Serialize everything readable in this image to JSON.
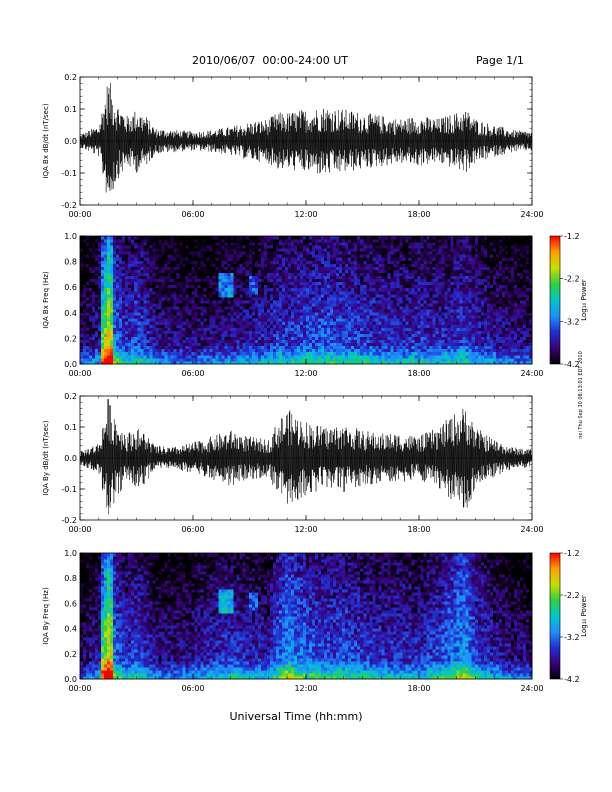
{
  "header": {
    "title": "2010/06/07  00:00-24:00 UT",
    "page": "Page 1/1"
  },
  "footer": {
    "xlabel": "Universal Time (hh:mm)",
    "side_note": "nei Thu Sep 30 08:13:01 EDT 2010"
  },
  "x_ticks": [
    "00:00",
    "06:00",
    "12:00",
    "18:00",
    "24:00"
  ],
  "colorbar": {
    "label": "Log₁₀ Power",
    "ticks": [
      "-1.2",
      "-2.2",
      "-3.2",
      "-4.2"
    ],
    "range": [
      -4.2,
      -1.2
    ],
    "colors": [
      "#000000",
      "#3a007a",
      "#2030d0",
      "#1e90ff",
      "#00c8c8",
      "#30d040",
      "#c8e000",
      "#ffa000",
      "#ff0000"
    ]
  },
  "chart_data": [
    {
      "type": "line",
      "title": "",
      "xlabel": "",
      "ylabel": "IQA Bx dB/dt (nT/sec)",
      "xlim": [
        0,
        24
      ],
      "ylim": [
        -0.2,
        0.2
      ],
      "y_ticks": [
        "0.2",
        "0.1",
        "0.0",
        "-0.1",
        "-0.2"
      ],
      "series": [
        {
          "x": [
            0,
            1,
            1.5,
            2,
            2.5,
            3,
            3.5,
            4,
            5,
            6,
            7,
            8,
            9,
            10,
            10.5,
            11,
            12,
            13,
            14,
            15,
            16,
            17,
            18,
            19,
            20,
            20.5,
            21,
            22,
            23,
            24
          ],
          "y": [
            0.02,
            0.05,
            0.2,
            0.12,
            0.08,
            0.1,
            0.08,
            0.04,
            0.035,
            0.03,
            0.035,
            0.045,
            0.06,
            0.07,
            0.09,
            0.09,
            0.1,
            0.11,
            0.1,
            0.09,
            0.08,
            0.07,
            0.08,
            0.07,
            0.09,
            0.1,
            0.07,
            0.05,
            0.035,
            0.03
          ]
        }
      ]
    },
    {
      "type": "heatmap",
      "title": "",
      "xlabel": "",
      "ylabel": "IQA Bx Freq (Hz)",
      "xlim": [
        0,
        24
      ],
      "ylim": [
        0.0,
        1.0
      ],
      "y_ticks": [
        "1.0",
        "0.8",
        "0.6",
        "0.4",
        "0.2",
        "0.0"
      ],
      "x": [
        0,
        1,
        1.5,
        2,
        2.5,
        3,
        3.5,
        4,
        5,
        6,
        7,
        8,
        9,
        10,
        10.5,
        11,
        12,
        13,
        14,
        15,
        16,
        17,
        18,
        19,
        20,
        20.5,
        21,
        22,
        23,
        24
      ],
      "y": [
        0.0,
        0.2,
        0.4,
        0.6,
        0.8,
        1.0
      ],
      "z_levels": [
        -4.2,
        -3.2,
        -2.2,
        -1.2
      ],
      "z_range": [
        -4.2,
        -1.2
      ]
    },
    {
      "type": "line",
      "title": "",
      "xlabel": "",
      "ylabel": "IQA By dB/dt (nT/sec)",
      "xlim": [
        0,
        24
      ],
      "ylim": [
        -0.2,
        0.2
      ],
      "y_ticks": [
        "0.2",
        "0.1",
        "0.0",
        "-0.1",
        "-0.2"
      ],
      "series": [
        {
          "x": [
            0,
            1,
            1.5,
            2,
            2.5,
            3,
            3.5,
            4,
            5,
            6,
            7,
            8,
            9,
            10,
            10.5,
            11,
            12,
            13,
            14,
            15,
            16,
            17,
            18,
            19,
            20,
            20.5,
            21,
            22,
            23,
            24
          ],
          "y": [
            0.02,
            0.05,
            0.2,
            0.12,
            0.08,
            0.1,
            0.08,
            0.04,
            0.035,
            0.05,
            0.07,
            0.09,
            0.07,
            0.06,
            0.12,
            0.16,
            0.12,
            0.1,
            0.11,
            0.09,
            0.08,
            0.08,
            0.07,
            0.1,
            0.15,
            0.17,
            0.1,
            0.06,
            0.035,
            0.03
          ]
        }
      ]
    },
    {
      "type": "heatmap",
      "title": "",
      "xlabel": "",
      "ylabel": "IQA By Freq (Hz)",
      "xlim": [
        0,
        24
      ],
      "ylim": [
        0.0,
        1.0
      ],
      "y_ticks": [
        "1.0",
        "0.8",
        "0.6",
        "0.4",
        "0.2",
        "0.0"
      ],
      "x": [
        0,
        1,
        1.5,
        2,
        2.5,
        3,
        3.5,
        4,
        5,
        6,
        7,
        8,
        9,
        10,
        10.5,
        11,
        12,
        13,
        14,
        15,
        16,
        17,
        18,
        19,
        20,
        20.5,
        21,
        22,
        23,
        24
      ],
      "y": [
        0.0,
        0.2,
        0.4,
        0.6,
        0.8,
        1.0
      ],
      "z_levels": [
        -4.2,
        -3.2,
        -2.2,
        -1.2
      ],
      "z_range": [
        -4.2,
        -1.2
      ]
    }
  ]
}
